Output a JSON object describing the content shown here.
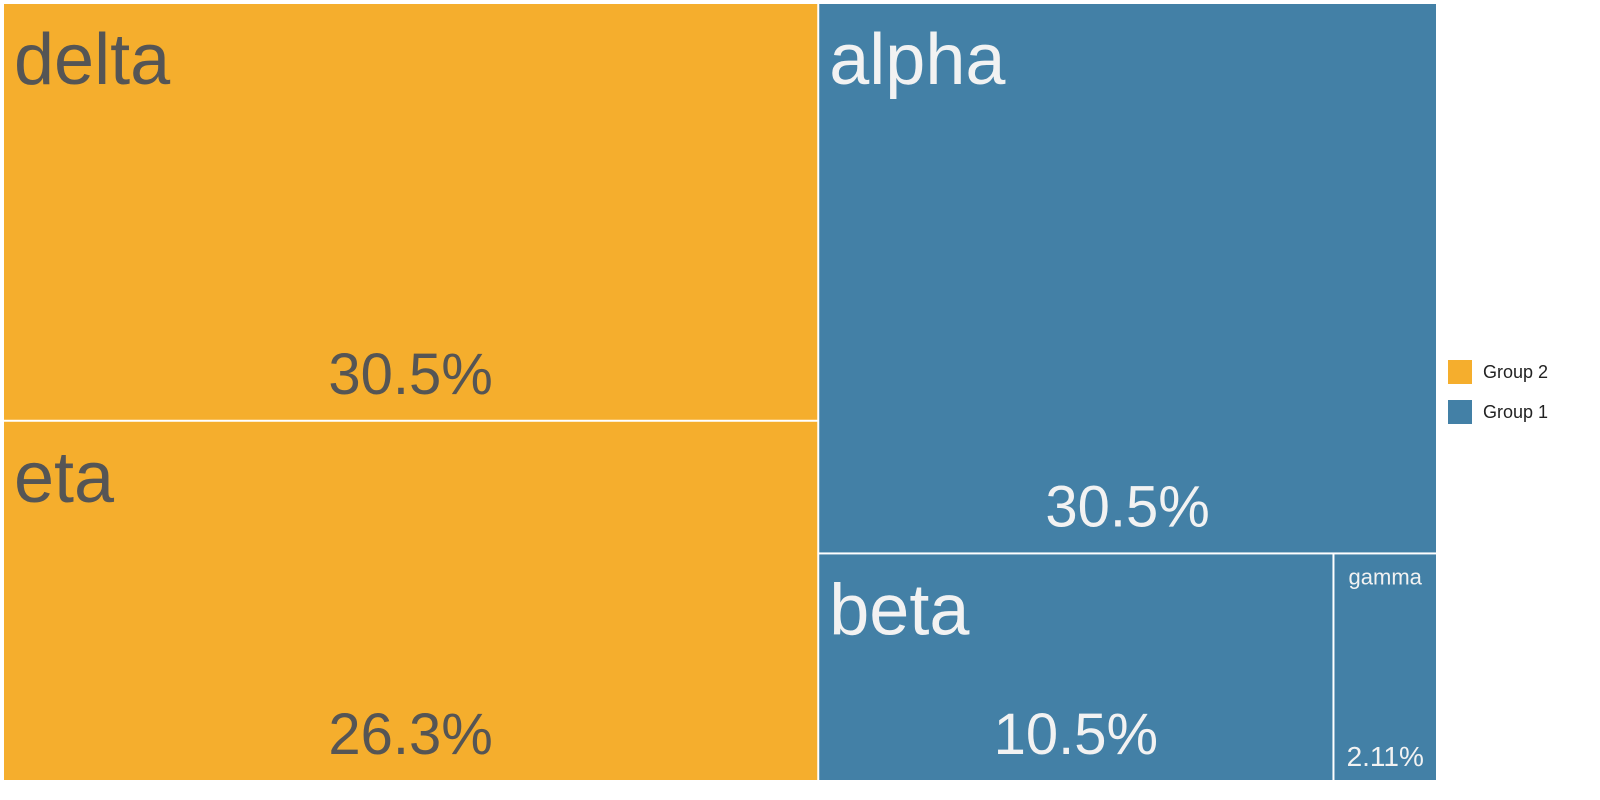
{
  "chart_data": {
    "type": "treemap",
    "title": "",
    "series": [
      {
        "name": "Group 2",
        "color": "#F5AE2D",
        "text_color": "#555555",
        "items": [
          {
            "label": "delta",
            "value": 30.5,
            "value_label": "30.5%"
          },
          {
            "label": "eta",
            "value": 26.3,
            "value_label": "26.3%"
          }
        ]
      },
      {
        "name": "Group 1",
        "color": "#4380A6",
        "text_color": "#F2F2F2",
        "items": [
          {
            "label": "alpha",
            "value": 30.5,
            "value_label": "30.5%"
          },
          {
            "label": "beta",
            "value": 10.5,
            "value_label": "10.5%"
          },
          {
            "label": "gamma",
            "value": 2.11,
            "value_label": "2.11%"
          }
        ]
      }
    ],
    "legend": {
      "position": "right",
      "entries": [
        {
          "label": "Group 2",
          "color": "#F5AE2D"
        },
        {
          "label": "Group 1",
          "color": "#4380A6"
        }
      ]
    }
  }
}
